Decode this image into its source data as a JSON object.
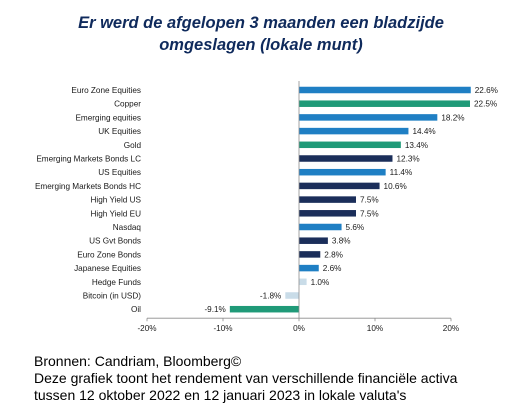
{
  "title": {
    "line1": "Er werd de afgelopen 3 maanden een bladzijde",
    "line2": "omgeslagen (lokale munt)"
  },
  "footer": {
    "source": "Bronnen: Candriam, Bloomberg©",
    "note_line1": "Deze grafiek toont het rendement van verschillende financiële activa",
    "note_line2": "tussen 12 oktober 2022 en 12 januari 2023 in lokale valuta's"
  },
  "colors": {
    "navy": "#1b2e5a",
    "blue": "#1f7fc4",
    "green": "#1f9a78",
    "light": "#c9dce8",
    "axis": "#8c8c8c"
  },
  "chart_data": {
    "type": "bar",
    "orientation": "horizontal",
    "categories": [
      "Euro Zone Equities",
      "Copper",
      "Emerging equities",
      "UK Equities",
      "Gold",
      "Emerging Markets Bonds LC",
      "US Equities",
      "Emerging Markets Bonds HC",
      "High Yield US",
      "High Yield EU",
      "Nasdaq",
      "US Gvt Bonds",
      "Euro Zone Bonds",
      "Japanese Equities",
      "Hedge Funds",
      "Bitcoin (in USD)",
      "Oil"
    ],
    "values": [
      22.6,
      22.5,
      18.2,
      14.4,
      13.4,
      12.3,
      11.4,
      10.6,
      7.5,
      7.5,
      5.6,
      3.8,
      2.8,
      2.6,
      1.0,
      -1.8,
      -9.1
    ],
    "value_labels": [
      "22.6%",
      "22.5%",
      "18.2%",
      "14.4%",
      "13.4%",
      "12.3%",
      "11.4%",
      "10.6%",
      "7.5%",
      "7.5%",
      "5.6%",
      "3.8%",
      "2.8%",
      "2.6%",
      "1.0%",
      "-1.8%",
      "-9.1%"
    ],
    "bar_colors": [
      "#1f7fc4",
      "#1f9a78",
      "#1f7fc4",
      "#1f7fc4",
      "#1f9a78",
      "#1b2e5a",
      "#1f7fc4",
      "#1b2e5a",
      "#1b2e5a",
      "#1b2e5a",
      "#1f7fc4",
      "#1b2e5a",
      "#1b2e5a",
      "#1f7fc4",
      "#c9dce8",
      "#c9dce8",
      "#1f9a78"
    ],
    "xlim": [
      -20,
      25
    ],
    "xticks": [
      -20,
      -10,
      0,
      10,
      20
    ],
    "xtick_labels": [
      "-20%",
      "-10%",
      "0%",
      "10%",
      "20%"
    ],
    "grid": false,
    "legend": false
  }
}
